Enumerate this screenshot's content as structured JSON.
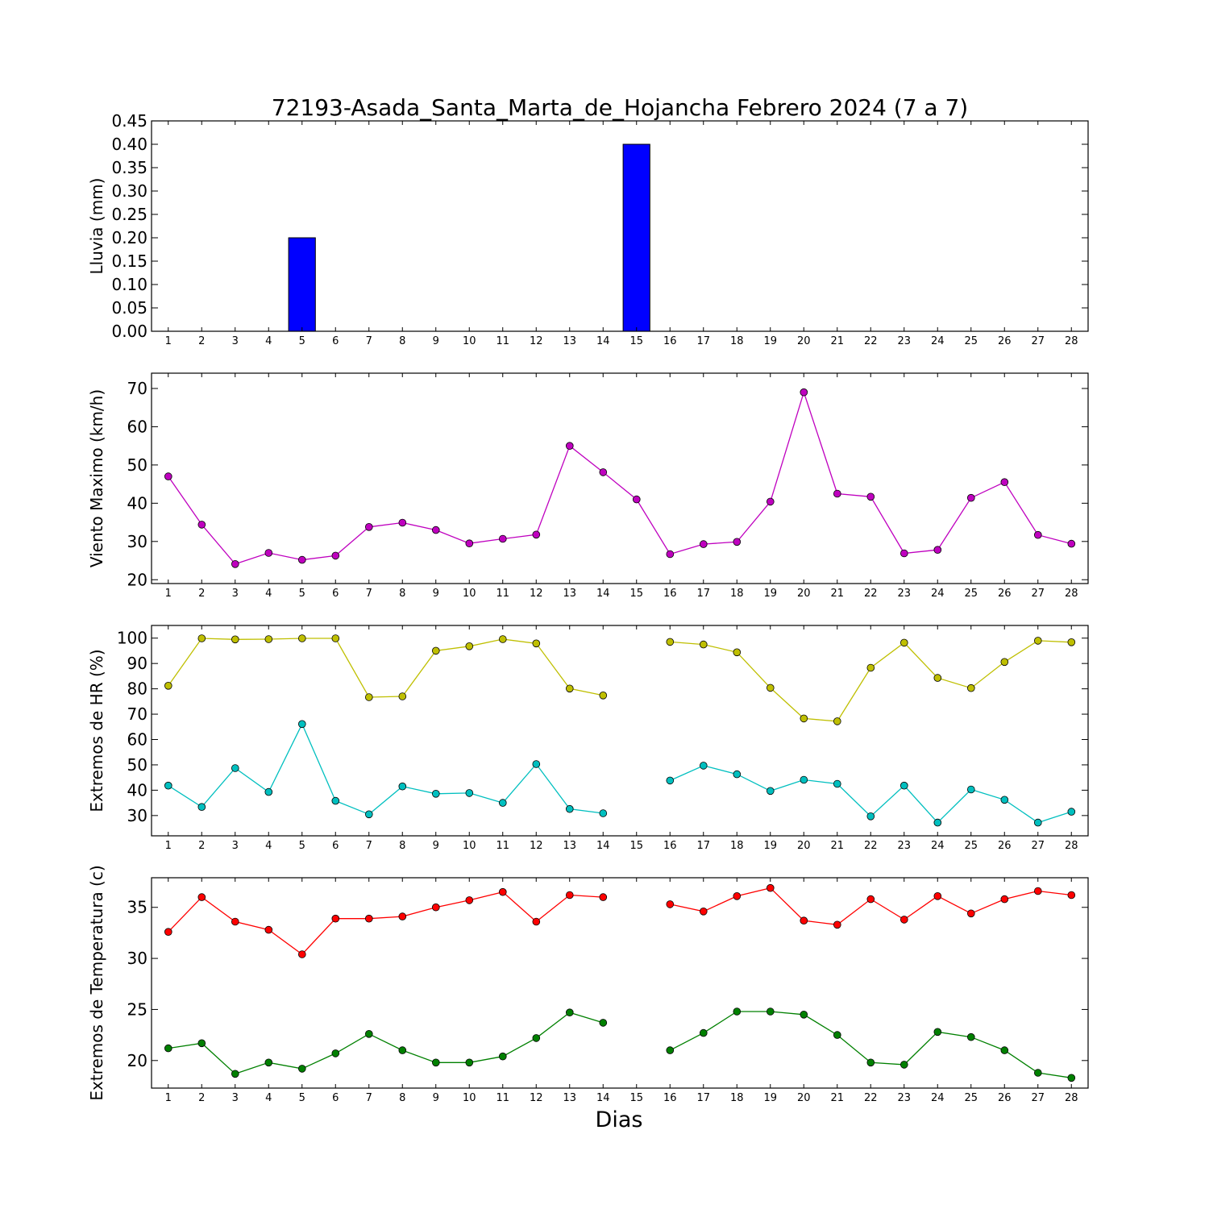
{
  "figure": {
    "title": "72193-Asada_Santa_Marta_de_Hojancha Febrero 2024  (7 a 7)",
    "xlabel": "Dias"
  },
  "chart_data": [
    {
      "type": "bar",
      "ylabel": "Lluvia (mm)",
      "categories": [
        1,
        2,
        3,
        4,
        5,
        6,
        7,
        8,
        9,
        10,
        11,
        12,
        13,
        14,
        15,
        16,
        17,
        18,
        19,
        20,
        21,
        22,
        23,
        24,
        25,
        26,
        27,
        28
      ],
      "xticks": [
        1,
        2,
        3,
        4,
        5,
        6,
        7,
        8,
        9,
        10,
        11,
        12,
        13,
        14,
        15,
        16,
        17,
        18,
        19,
        20,
        21,
        22,
        23,
        24,
        25,
        26,
        27,
        28
      ],
      "ylim": [
        0,
        0.45
      ],
      "yticks": [
        0.0,
        0.05,
        0.1,
        0.15,
        0.2,
        0.25,
        0.3,
        0.35,
        0.4,
        0.45
      ],
      "ytick_decimals": 2,
      "grid": false,
      "series": [
        {
          "color": "#0000ff",
          "values": [
            0,
            0,
            0,
            0,
            0.2,
            0,
            0,
            0,
            0,
            0,
            0,
            0,
            0,
            0,
            0.4,
            0,
            0,
            0,
            0,
            0,
            0,
            0,
            0,
            0,
            0,
            0,
            0,
            0
          ]
        }
      ]
    },
    {
      "type": "line",
      "ylabel": "Viento Maximo (km/h)",
      "x": [
        1,
        2,
        3,
        4,
        5,
        6,
        7,
        8,
        9,
        10,
        11,
        12,
        13,
        14,
        15,
        16,
        17,
        18,
        19,
        20,
        21,
        22,
        23,
        24,
        25,
        26,
        27,
        28
      ],
      "xticks": [
        1,
        2,
        3,
        4,
        5,
        6,
        7,
        8,
        9,
        10,
        11,
        12,
        13,
        14,
        15,
        16,
        17,
        18,
        19,
        20,
        21,
        22,
        23,
        24,
        25,
        26,
        27,
        28
      ],
      "ylim": [
        19,
        74
      ],
      "yticks": [
        20,
        30,
        40,
        50,
        60,
        70
      ],
      "ytick_decimals": 0,
      "grid": false,
      "series": [
        {
          "color": "#bf00bf",
          "values": [
            47.0,
            34.4,
            24.1,
            27.0,
            25.2,
            26.3,
            33.8,
            34.9,
            33.0,
            29.5,
            30.7,
            31.8,
            55.0,
            48.1,
            41.0,
            26.7,
            29.3,
            29.9,
            40.4,
            69.0,
            42.5,
            41.7,
            26.9,
            27.8,
            41.4,
            45.5,
            31.7,
            29.4
          ]
        }
      ]
    },
    {
      "type": "line",
      "ylabel": "Extremos de HR (%)",
      "x": [
        1,
        2,
        3,
        4,
        5,
        6,
        7,
        8,
        9,
        10,
        11,
        12,
        13,
        14,
        15,
        16,
        17,
        18,
        19,
        20,
        21,
        22,
        23,
        24,
        25,
        26,
        27,
        28
      ],
      "xticks": [
        1,
        2,
        3,
        4,
        5,
        6,
        7,
        8,
        9,
        10,
        11,
        12,
        13,
        14,
        15,
        16,
        17,
        18,
        19,
        20,
        21,
        22,
        23,
        24,
        25,
        26,
        27,
        28
      ],
      "ylim": [
        22,
        105
      ],
      "yticks": [
        30,
        40,
        50,
        60,
        70,
        80,
        90,
        100
      ],
      "ytick_decimals": 0,
      "grid": false,
      "series": [
        {
          "color": "#bfbf00",
          "values": [
            81.2,
            99.9,
            99.5,
            99.6,
            99.9,
            99.9,
            76.7,
            77.0,
            95.0,
            96.8,
            99.6,
            97.9,
            80.1,
            77.4,
            null,
            98.5,
            97.5,
            94.4,
            80.4,
            68.3,
            67.2,
            88.3,
            98.2,
            84.3,
            80.3,
            90.6,
            99.0,
            98.4
          ]
        },
        {
          "color": "#00bfbf",
          "values": [
            41.8,
            33.4,
            48.7,
            39.3,
            66.1,
            35.8,
            30.5,
            41.5,
            38.6,
            38.9,
            35.0,
            50.3,
            32.6,
            30.9,
            null,
            43.8,
            49.7,
            46.3,
            39.7,
            44.1,
            42.5,
            29.7,
            41.8,
            27.2,
            40.3,
            36.2,
            27.2,
            31.5
          ]
        }
      ]
    },
    {
      "type": "line",
      "ylabel": "Extremos de Temperatura (c)",
      "x": [
        1,
        2,
        3,
        4,
        5,
        6,
        7,
        8,
        9,
        10,
        11,
        12,
        13,
        14,
        15,
        16,
        17,
        18,
        19,
        20,
        21,
        22,
        23,
        24,
        25,
        26,
        27,
        28
      ],
      "xticks": [
        1,
        2,
        3,
        4,
        5,
        6,
        7,
        8,
        9,
        10,
        11,
        12,
        13,
        14,
        15,
        16,
        17,
        18,
        19,
        20,
        21,
        22,
        23,
        24,
        25,
        26,
        27,
        28
      ],
      "ylim": [
        17.3,
        37.9
      ],
      "yticks": [
        20,
        25,
        30,
        35
      ],
      "ytick_decimals": 0,
      "grid": false,
      "series": [
        {
          "color": "#ff0000",
          "values": [
            32.6,
            36.0,
            33.6,
            32.8,
            30.4,
            33.9,
            33.9,
            34.1,
            35.0,
            35.7,
            36.5,
            33.6,
            36.2,
            36.0,
            null,
            35.3,
            34.6,
            36.1,
            36.9,
            33.7,
            33.3,
            35.8,
            33.8,
            36.1,
            34.4,
            35.8,
            36.6,
            36.2
          ]
        },
        {
          "color": "#008000",
          "values": [
            21.2,
            21.7,
            18.7,
            19.8,
            19.2,
            20.7,
            22.6,
            21.0,
            19.8,
            19.8,
            20.4,
            22.2,
            24.7,
            23.7,
            null,
            21.0,
            22.7,
            24.8,
            24.8,
            24.5,
            22.5,
            19.8,
            19.6,
            22.8,
            22.3,
            21.0,
            18.8,
            18.3
          ]
        }
      ]
    }
  ]
}
